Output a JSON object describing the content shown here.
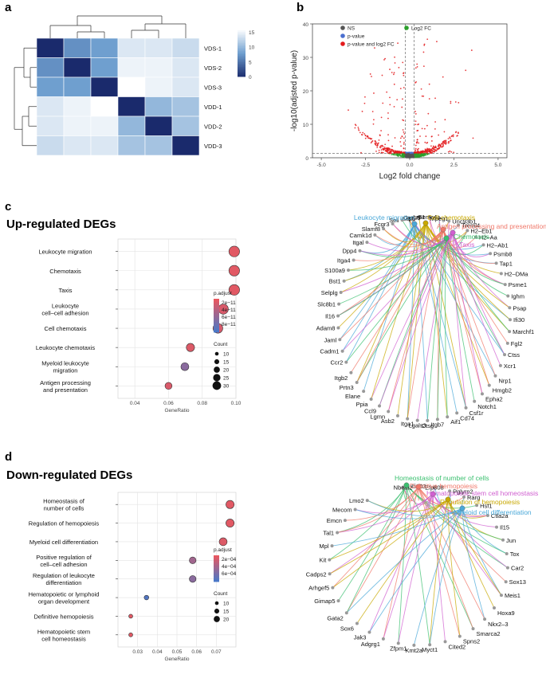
{
  "panels": {
    "a": "a",
    "b": "b",
    "c": "c",
    "d": "d"
  },
  "heatmap": {
    "rows": [
      "VDS-1",
      "VDS-2",
      "VDS-3",
      "VDD-1",
      "VDD-2",
      "VDD-3"
    ],
    "matrix": [
      [
        0,
        7,
        8,
        14,
        14,
        13
      ],
      [
        7,
        0,
        8,
        15,
        15,
        14
      ],
      [
        8,
        8,
        0,
        16,
        15,
        14
      ],
      [
        14,
        15,
        16,
        0,
        10,
        11
      ],
      [
        14,
        15,
        15,
        10,
        0,
        11
      ],
      [
        13,
        14,
        14,
        11,
        11,
        0
      ]
    ],
    "colorbar_ticks": [
      "15",
      "10",
      "5",
      "0"
    ],
    "colors": {
      "low": "#1a2a6c",
      "mid": "#6f9fcf",
      "high": "#ffffff"
    }
  },
  "volcano": {
    "xlabel": "Log2 fold change",
    "ylabel": "-log10(adjsted p-value)",
    "xticks": [
      "-5.0",
      "-2.5",
      "0.0",
      "2.5",
      "5.0"
    ],
    "yticks": [
      "0",
      "10",
      "20",
      "30",
      "40"
    ],
    "xlim": [
      -5.5,
      5.5
    ],
    "ylim": [
      0,
      40
    ],
    "legend": [
      {
        "label": "NS",
        "color": "#555555"
      },
      {
        "label": "Log2 FC",
        "color": "#2ca02c"
      },
      {
        "label": "p-value",
        "color": "#4a6fd0"
      },
      {
        "label": "p-value and log2 FC",
        "color": "#e31a1c"
      }
    ]
  },
  "up": {
    "title": "Up-regulated DEGs",
    "xlabel": "GeneRatio",
    "xticks": [
      "0.04",
      "0.06",
      "0.08",
      "0.10"
    ],
    "xlim": [
      0.03,
      0.1
    ],
    "terms": [
      {
        "label": [
          "Leukocyte migration"
        ],
        "x": 0.099,
        "count": 30,
        "p": 0.05
      },
      {
        "label": [
          "Chemotaxis"
        ],
        "x": 0.099,
        "count": 30,
        "p": 0.05
      },
      {
        "label": [
          "Taxis"
        ],
        "x": 0.099,
        "count": 30,
        "p": 0.05
      },
      {
        "label": [
          "Leukocyte",
          "cell–cell adhesion"
        ],
        "x": 0.0925,
        "count": 28,
        "p": 0.1
      },
      {
        "label": [
          "Cell chemotaxis"
        ],
        "x": 0.0893,
        "count": 27,
        "p": 0.12
      },
      {
        "label": [
          "Leukocyte chemotaxis"
        ],
        "x": 0.073,
        "count": 22,
        "p": 0.08
      },
      {
        "label": [
          "Myeloid leukocyte",
          "migration"
        ],
        "x": 0.0697,
        "count": 21,
        "p": 0.6
      },
      {
        "label": [
          "Antigen processing",
          "and presentation"
        ],
        "x": 0.06,
        "count": 18,
        "p": 0.1
      }
    ],
    "legend_title": "p.adjust",
    "legend_ticks": [
      "2e−11",
      "4e−11",
      "6e−11",
      "8e−11"
    ],
    "count_title": "Count",
    "count_ticks": [
      "10",
      "15",
      "20",
      "25",
      "30"
    ],
    "network_terms": [
      {
        "label": "Leukocyte migration",
        "color": "#4aa8d8"
      },
      {
        "label": "Cell chemotaxis",
        "color": "#c8a800"
      },
      {
        "label": "Antigen processing and presentation",
        "color": "#f0786a"
      },
      {
        "label": "Chemotaxis",
        "color": "#3cc070"
      },
      {
        "label": "Taxis",
        "color": "#d060d0"
      }
    ],
    "genes": [
      "Lsp1",
      "Lrp1",
      "Sema4a",
      "Mpeg1",
      "Unc93b1",
      "Treml4",
      "H2–Eb1",
      "H2–Aa",
      "H2–Ab1",
      "Psmb8",
      "Tap1",
      "H2–DMa",
      "Psme1",
      "Ighm",
      "Psap",
      "Ifi30",
      "Marchf1",
      "Fgl2",
      "Ctss",
      "Xcr1",
      "Nrp1",
      "Hmgb2",
      "Epha2",
      "Notch1",
      "Csf1r",
      "Cd74",
      "Aif1",
      "Itgb7",
      "Ctsg",
      "Lgals3",
      "Itga1",
      "Asb2",
      "Lgmn",
      "Ccl9",
      "Ppia",
      "Elane",
      "Prtn3",
      "Itgb2",
      "Ccr2",
      "Cadm1",
      "Jaml",
      "Adam8",
      "Il16",
      "Slc8b1",
      "Selplg",
      "Bst1",
      "S100a9",
      "Itga4",
      "Dpp4",
      "Itgal",
      "Camk1d",
      "Slamf8",
      "Fcgr3",
      "Sell",
      "Gpr35"
    ]
  },
  "down": {
    "title": "Down-regulated DEGs",
    "xlabel": "GeneRatio",
    "xticks": [
      "0.03",
      "0.04",
      "0.05",
      "0.06",
      "0.07"
    ],
    "xlim": [
      0.02,
      0.08
    ],
    "terms": [
      {
        "label": [
          "Homeostasis of",
          "number of cells"
        ],
        "x": 0.077,
        "count": 22,
        "p": 0.05
      },
      {
        "label": [
          "Regulation of hemopoiesis"
        ],
        "x": 0.077,
        "count": 22,
        "p": 0.05
      },
      {
        "label": [
          "Myeloid cell differentiation"
        ],
        "x": 0.0735,
        "count": 21,
        "p": 0.08
      },
      {
        "label": [
          "Positive regulation of",
          "cell–cell adhesion"
        ],
        "x": 0.058,
        "count": 17,
        "p": 0.45
      },
      {
        "label": [
          "Regulation of leukocyte",
          "differentiation"
        ],
        "x": 0.058,
        "count": 17,
        "p": 0.6
      },
      {
        "label": [
          "Hematopoietic or lymphoid",
          "organ development"
        ],
        "x": 0.0345,
        "count": 10,
        "p": 0.95
      },
      {
        "label": [
          "Definitive hemopoiesis"
        ],
        "x": 0.0265,
        "count": 8,
        "p": 0.05
      },
      {
        "label": [
          "Hematopoietic stem",
          "cell homeostasis"
        ],
        "x": 0.0265,
        "count": 8,
        "p": 0.05
      }
    ],
    "legend_title": "p.adjust",
    "legend_ticks": [
      "2e−04",
      "4e−04",
      "6e−04"
    ],
    "count_title": "Count",
    "count_ticks": [
      "10",
      "15",
      "20"
    ],
    "network_terms": [
      {
        "label": "Homeostasis of number of cells",
        "color": "#3cc070"
      },
      {
        "label": "Definitive hemopoiesis",
        "color": "#f0786a"
      },
      {
        "label": "Hematopoietic stem cell homeostasis",
        "color": "#d060d0"
      },
      {
        "label": "Regulation of hemopoiesis",
        "color": "#c8a800"
      },
      {
        "label": "Myeloid cell differentiation",
        "color": "#4aa8d8"
      }
    ],
    "genes": [
      "Nbeal2",
      "Ifi203",
      "Zfp608",
      "Pglyrp2",
      "Rarg",
      "Hsf1",
      "Ctla2a",
      "Il15",
      "Jun",
      "Tox",
      "Car2",
      "Sox13",
      "Meis1",
      "Hoxa9",
      "Nkx2–3",
      "Smarca2",
      "Spns2",
      "Cited2",
      "Myct1",
      "Kmt2a",
      "Zfpm1",
      "Adgrg1",
      "Jak3",
      "Sox6",
      "Gata2",
      "Gimap5",
      "Arhgef5",
      "Cadps2",
      "Kit",
      "Mpl",
      "Tal1",
      "Emcn",
      "Mecom",
      "Lmo2"
    ]
  },
  "colors": {
    "dot_low": "#e9575f",
    "dot_high": "#4a78c8",
    "grid": "#e3e3e3",
    "panel_border": "#cfcfcf"
  }
}
